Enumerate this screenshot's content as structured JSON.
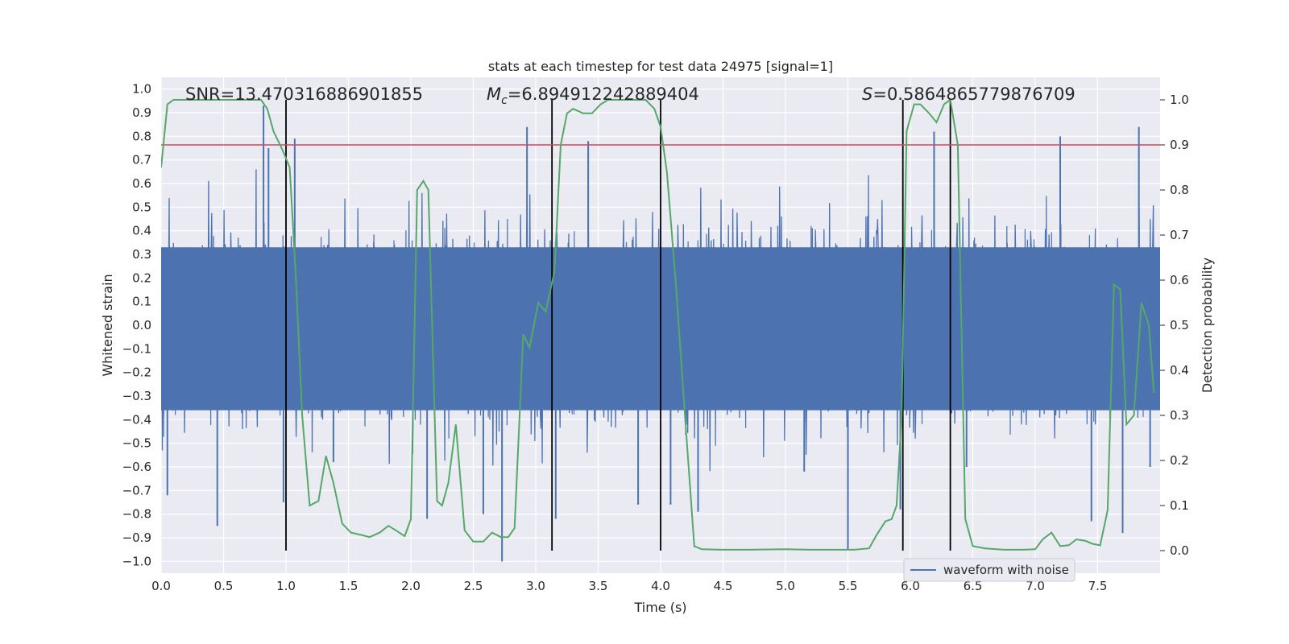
{
  "chart_data": {
    "type": "line",
    "title": "stats at each timestep for test data 24975 [signal=1]",
    "xlabel": "Time (s)",
    "ylabel_left": "Whitened strain",
    "ylabel_right": "Detection probability",
    "xlim": [
      0.0,
      8.0
    ],
    "ylim_left": [
      -1.05,
      1.05
    ],
    "ylim_right": [
      -0.05,
      1.05
    ],
    "x_ticks": [
      "0.0",
      "0.5",
      "1.0",
      "1.5",
      "2.0",
      "2.5",
      "3.0",
      "3.5",
      "4.0",
      "4.5",
      "5.0",
      "5.5",
      "6.0",
      "6.5",
      "7.0",
      "7.5"
    ],
    "y_ticks_left": [
      "1.0",
      "0.9",
      "0.8",
      "0.7",
      "0.6",
      "0.5",
      "0.4",
      "0.3",
      "0.2",
      "0.1",
      "0.0",
      "−0.1",
      "−0.2",
      "−0.3",
      "−0.4",
      "−0.5",
      "−0.6",
      "−0.7",
      "−0.8",
      "−0.9",
      "−1.0"
    ],
    "y_ticks_right": [
      "1.0",
      "0.9",
      "0.8",
      "0.7",
      "0.6",
      "0.5",
      "0.4",
      "0.3",
      "0.2",
      "0.1",
      "0.0"
    ],
    "annotations": {
      "snr": "SNR=13.470316886901855",
      "mc_symbol": "M",
      "mc_sub": "c",
      "mc_value": "=6.894912242889404",
      "s_symbol": "S",
      "s_value": "=0.5864865779876709"
    },
    "legend": {
      "label": "waveform with noise",
      "position": "lower-right"
    },
    "threshold": 0.9,
    "vlines": [
      1.0,
      3.13,
      4.0,
      5.94,
      6.32
    ],
    "series": [
      {
        "name": "waveform with noise",
        "color": "#4c72b0",
        "note": "dense noise waveform",
        "spikes": [
          [
            0.05,
            -0.72
          ],
          [
            0.45,
            -0.85
          ],
          [
            0.82,
            0.93
          ],
          [
            0.86,
            0.75
          ],
          [
            0.98,
            -0.75
          ],
          [
            1.07,
            0.79
          ],
          [
            1.38,
            -0.58
          ],
          [
            2.13,
            -0.82
          ],
          [
            2.58,
            -0.8
          ],
          [
            2.73,
            -1.0
          ],
          [
            2.93,
            0.84
          ],
          [
            3.16,
            -0.82
          ],
          [
            3.42,
            0.78
          ],
          [
            3.82,
            -0.76
          ],
          [
            4.08,
            -0.76
          ],
          [
            4.3,
            -0.79
          ],
          [
            5.15,
            -0.62
          ],
          [
            5.5,
            -0.95
          ],
          [
            5.92,
            -0.78
          ],
          [
            6.19,
            0.82
          ],
          [
            6.45,
            -0.6
          ],
          [
            7.2,
            0.8
          ],
          [
            7.45,
            -0.83
          ],
          [
            7.7,
            -0.88
          ],
          [
            7.83,
            0.84
          ],
          [
            7.92,
            -0.6
          ]
        ]
      },
      {
        "name": "detection probability",
        "color": "#55a868",
        "points": [
          [
            0.0,
            0.85
          ],
          [
            0.05,
            0.99
          ],
          [
            0.1,
            1.0
          ],
          [
            0.2,
            1.0
          ],
          [
            0.3,
            1.0
          ],
          [
            0.4,
            1.0
          ],
          [
            0.5,
            1.0
          ],
          [
            0.6,
            1.0
          ],
          [
            0.7,
            1.0
          ],
          [
            0.8,
            1.0
          ],
          [
            0.85,
            0.98
          ],
          [
            0.9,
            0.93
          ],
          [
            0.97,
            0.89
          ],
          [
            1.03,
            0.85
          ],
          [
            1.08,
            0.6
          ],
          [
            1.13,
            0.3
          ],
          [
            1.19,
            0.1
          ],
          [
            1.26,
            0.11
          ],
          [
            1.32,
            0.21
          ],
          [
            1.38,
            0.15
          ],
          [
            1.45,
            0.06
          ],
          [
            1.52,
            0.04
          ],
          [
            1.6,
            0.035
          ],
          [
            1.67,
            0.03
          ],
          [
            1.75,
            0.04
          ],
          [
            1.82,
            0.055
          ],
          [
            1.88,
            0.045
          ],
          [
            1.95,
            0.032
          ],
          [
            2.0,
            0.07
          ],
          [
            2.05,
            0.8
          ],
          [
            2.1,
            0.82
          ],
          [
            2.14,
            0.8
          ],
          [
            2.21,
            0.11
          ],
          [
            2.25,
            0.1
          ],
          [
            2.3,
            0.15
          ],
          [
            2.36,
            0.28
          ],
          [
            2.43,
            0.045
          ],
          [
            2.5,
            0.02
          ],
          [
            2.58,
            0.02
          ],
          [
            2.65,
            0.04
          ],
          [
            2.72,
            0.03
          ],
          [
            2.78,
            0.03
          ],
          [
            2.83,
            0.05
          ],
          [
            2.9,
            0.48
          ],
          [
            2.95,
            0.45
          ],
          [
            3.02,
            0.55
          ],
          [
            3.08,
            0.53
          ],
          [
            3.15,
            0.62
          ],
          [
            3.2,
            0.9
          ],
          [
            3.25,
            0.97
          ],
          [
            3.3,
            0.98
          ],
          [
            3.38,
            0.97
          ],
          [
            3.45,
            0.97
          ],
          [
            3.52,
            0.99
          ],
          [
            3.58,
            1.0
          ],
          [
            3.7,
            1.0
          ],
          [
            3.8,
            1.0
          ],
          [
            3.88,
            1.0
          ],
          [
            3.95,
            0.98
          ],
          [
            4.0,
            0.94
          ],
          [
            4.05,
            0.84
          ],
          [
            4.12,
            0.6
          ],
          [
            4.2,
            0.28
          ],
          [
            4.27,
            0.01
          ],
          [
            4.33,
            0.003
          ],
          [
            4.5,
            0.002
          ],
          [
            4.7,
            0.002
          ],
          [
            5.0,
            0.003
          ],
          [
            5.2,
            0.002
          ],
          [
            5.4,
            0.002
          ],
          [
            5.55,
            0.002
          ],
          [
            5.67,
            0.005
          ],
          [
            5.73,
            0.035
          ],
          [
            5.8,
            0.065
          ],
          [
            5.85,
            0.07
          ],
          [
            5.89,
            0.1
          ],
          [
            5.93,
            0.3
          ],
          [
            5.97,
            0.93
          ],
          [
            6.03,
            0.99
          ],
          [
            6.08,
            0.99
          ],
          [
            6.15,
            0.97
          ],
          [
            6.21,
            0.95
          ],
          [
            6.27,
            0.99
          ],
          [
            6.32,
            1.0
          ],
          [
            6.38,
            0.9
          ],
          [
            6.44,
            0.07
          ],
          [
            6.5,
            0.01
          ],
          [
            6.6,
            0.005
          ],
          [
            6.75,
            0.002
          ],
          [
            6.9,
            0.002
          ],
          [
            7.0,
            0.003
          ],
          [
            7.06,
            0.025
          ],
          [
            7.13,
            0.04
          ],
          [
            7.2,
            0.01
          ],
          [
            7.27,
            0.012
          ],
          [
            7.33,
            0.025
          ],
          [
            7.4,
            0.022
          ],
          [
            7.46,
            0.015
          ],
          [
            7.52,
            0.012
          ],
          [
            7.58,
            0.09
          ],
          [
            7.63,
            0.59
          ],
          [
            7.68,
            0.58
          ],
          [
            7.73,
            0.28
          ],
          [
            7.79,
            0.3
          ],
          [
            7.85,
            0.55
          ],
          [
            7.91,
            0.5
          ],
          [
            7.95,
            0.35
          ]
        ]
      }
    ]
  }
}
